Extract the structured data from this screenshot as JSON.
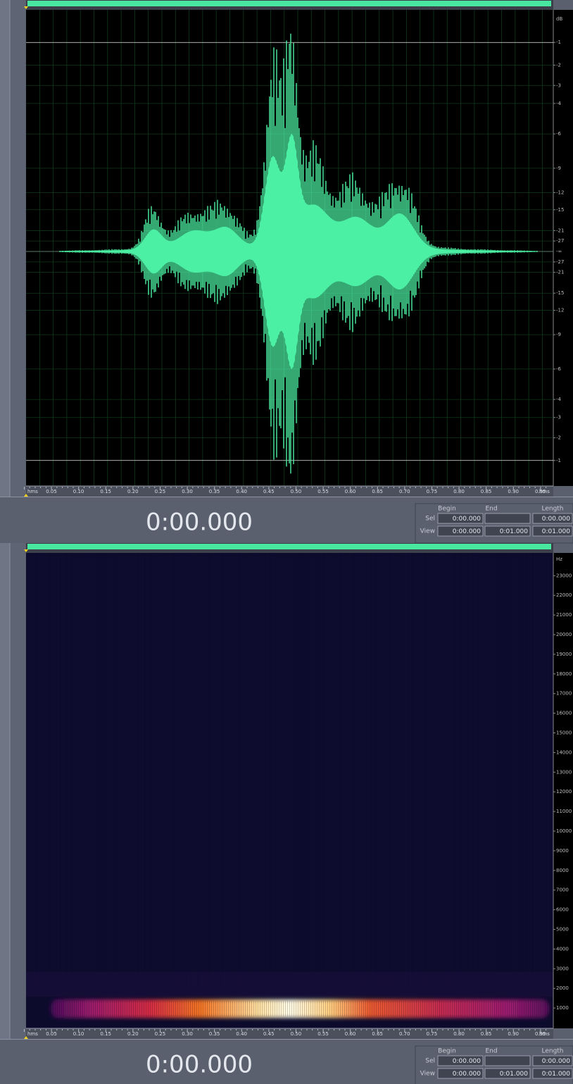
{
  "waveform": {
    "db_unit": "dB",
    "db_upper": [
      -1,
      -2,
      -3,
      -4,
      -6,
      -9,
      -12,
      -15,
      -21,
      -27
    ],
    "db_center": "-∞",
    "db_lower": [
      -27,
      -21,
      -15,
      -12,
      -9,
      -6,
      -4,
      -3,
      -2,
      -1
    ],
    "time_unit": "hms",
    "time_ticks": [
      "0.05",
      "0.10",
      "0.15",
      "0.20",
      "0.25",
      "0.30",
      "0.35",
      "0.40",
      "0.45",
      "0.50",
      "0.55",
      "0.60",
      "0.65",
      "0.70",
      "0.75",
      "0.80",
      "0.85",
      "0.90",
      "0.95"
    ],
    "time_unit_end": "hms"
  },
  "waveform_status": {
    "time_display": "0:00.000",
    "headers": [
      "Begin",
      "End",
      "Length"
    ],
    "sel_label": "Sel",
    "sel_begin": "0:00.000",
    "sel_length": "0:00.000",
    "view_label": "View",
    "view_begin": "0:00.000",
    "view_end": "0:01.000",
    "view_length": "0:01.000"
  },
  "spectrogram": {
    "hz_unit": "Hz",
    "hz_ticks": [
      23000,
      22000,
      21000,
      20000,
      19000,
      18000,
      17000,
      16000,
      15000,
      14000,
      13000,
      12000,
      11000,
      10000,
      9000,
      8000,
      7000,
      6000,
      5000,
      4000,
      3000,
      2000,
      1000
    ],
    "time_unit": "hms",
    "time_ticks": [
      "0.05",
      "0.10",
      "0.15",
      "0.20",
      "0.25",
      "0.30",
      "0.35",
      "0.40",
      "0.45",
      "0.50",
      "0.55",
      "0.60",
      "0.65",
      "0.70",
      "0.75",
      "0.80",
      "0.85",
      "0.90",
      "0.95"
    ],
    "time_unit_end": "hms"
  },
  "spectrogram_status": {
    "time_display": "0:00.000",
    "headers": [
      "Begin",
      "End",
      "Length"
    ],
    "sel_label": "Sel",
    "sel_begin": "0:00.000",
    "sel_length": "0:00.000",
    "view_label": "View",
    "view_begin": "0:00.000",
    "view_end": "0:01.000",
    "view_length": "0:01.000"
  }
}
